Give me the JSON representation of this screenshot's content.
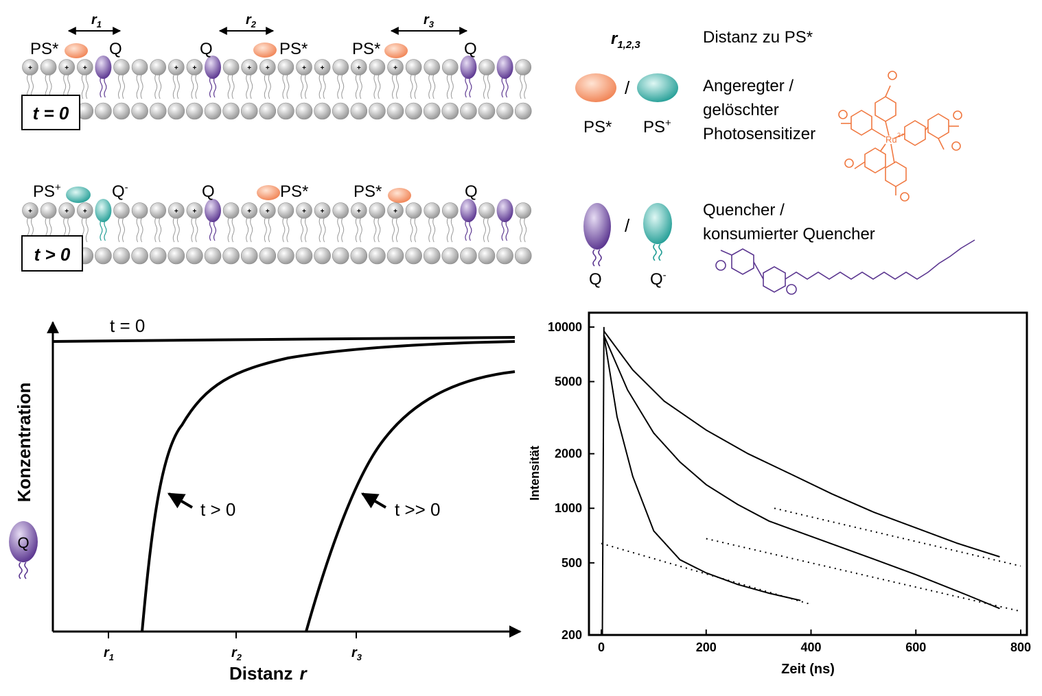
{
  "membrane_top": {
    "time_label": "t = 0",
    "r_labels": [
      "r",
      "r",
      "r"
    ],
    "r_subs": [
      "1",
      "2",
      "3"
    ],
    "labels": [
      {
        "text": "PS*",
        "kind": "ps"
      },
      {
        "text": "Q",
        "kind": "q"
      },
      {
        "text": "Q",
        "kind": "q"
      },
      {
        "text": "PS*",
        "kind": "ps"
      },
      {
        "text": "PS*",
        "kind": "ps"
      },
      {
        "text": "Q",
        "kind": "q"
      }
    ]
  },
  "membrane_bottom": {
    "time_label": "t > 0",
    "labels": [
      {
        "text": "PS",
        "sup": "+"
      },
      {
        "text": "Q",
        "sup": "-"
      },
      {
        "text": "Q",
        "sup": ""
      },
      {
        "text": "PS*",
        "sup": ""
      },
      {
        "text": "PS*",
        "sup": ""
      },
      {
        "text": "Q",
        "sup": ""
      }
    ]
  },
  "legend": {
    "r_symbol": "r",
    "r_sub": "1,2,3",
    "r_desc": "Distanz zu PS*",
    "slash": "/",
    "ps_excited": "PS*",
    "ps_oxidized": "PS",
    "ps_oxidized_sup": "+",
    "ps_desc_lines": [
      "Angeregter /",
      "gelöschter",
      "Photosensitizer"
    ],
    "q_label": "Q",
    "q_consumed": "Q",
    "q_consumed_sup": "-",
    "q_desc_lines": [
      "Quencher /",
      "konsumierter Quencher"
    ],
    "ru_label": "Ru",
    "ru_charge": "2+"
  },
  "conc_plot": {
    "ylabel": "Konzentration",
    "xlabel": "Distanz",
    "xlabel_var": "r",
    "q_icon": "Q",
    "curve_labels": [
      "t = 0",
      "t > 0",
      "t >> 0"
    ],
    "tick_labels": [
      {
        "main": "r",
        "sub": "1"
      },
      {
        "main": "r",
        "sub": "2"
      },
      {
        "main": "r",
        "sub": "3"
      }
    ]
  },
  "chart_data": {
    "type": "scatter",
    "title": "",
    "xlabel": "Zeit (ns)",
    "ylabel": "Intensität",
    "xlim": [
      0,
      800
    ],
    "ylim": [
      200,
      12000
    ],
    "yscale": "log",
    "x_ticks": [
      0,
      200,
      400,
      600,
      800
    ],
    "y_ticks": [
      200,
      500,
      1000,
      2000,
      5000,
      10000
    ],
    "grid": false,
    "series": [
      {
        "x": [
          5,
          30,
          60,
          100,
          150,
          200,
          260,
          320,
          380
        ],
        "y": [
          9000,
          3200,
          1500,
          750,
          520,
          440,
          380,
          340,
          310
        ]
      },
      {
        "x": [
          5,
          50,
          100,
          150,
          200,
          260,
          320,
          400,
          500,
          600,
          700,
          760
        ],
        "y": [
          9000,
          4500,
          2600,
          1800,
          1350,
          1050,
          850,
          700,
          550,
          430,
          330,
          280
        ]
      },
      {
        "x": [
          5,
          60,
          120,
          200,
          280,
          360,
          440,
          520,
          600,
          680,
          760
        ],
        "y": [
          9500,
          5800,
          3900,
          2700,
          2000,
          1550,
          1200,
          950,
          780,
          640,
          540
        ]
      }
    ],
    "fits": [
      {
        "x": [
          0,
          400
        ],
        "y": [
          640,
          295
        ]
      },
      {
        "x": [
          200,
          800
        ],
        "y": [
          680,
          270
        ]
      },
      {
        "x": [
          330,
          800
        ],
        "y": [
          1000,
          480
        ]
      }
    ]
  }
}
